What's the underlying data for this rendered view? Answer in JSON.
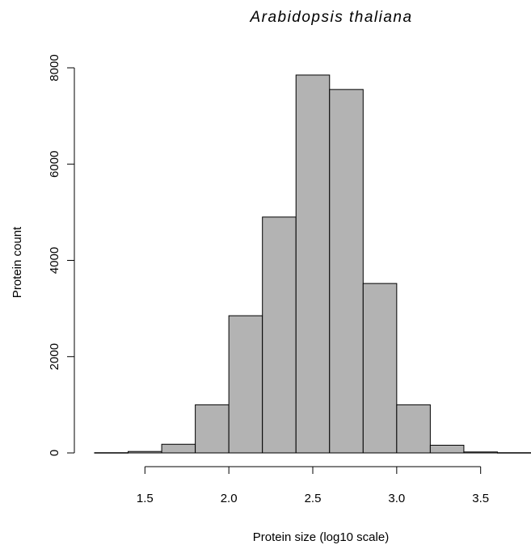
{
  "chart_data": {
    "type": "bar",
    "title": "Arabidopsis thaliana",
    "xlabel": "Protein size (log10 scale)",
    "ylabel": "Protein count",
    "xlim": [
      1.2,
      3.8
    ],
    "ylim": [
      0,
      8000
    ],
    "x_ticks": [
      "1.5",
      "2.0",
      "2.5",
      "3.0",
      "3.5"
    ],
    "y_ticks": [
      "0",
      "2000",
      "4000",
      "6000",
      "8000"
    ],
    "bin_edges": [
      1.2,
      1.4,
      1.6,
      1.8,
      2.0,
      2.2,
      2.4,
      2.6,
      2.8,
      3.0,
      3.2,
      3.4,
      3.6,
      3.8
    ],
    "values": [
      5,
      30,
      180,
      1000,
      2850,
      4900,
      7850,
      7550,
      3520,
      1000,
      160,
      20,
      5
    ],
    "grid": false,
    "bar_color": "#b3b3b3"
  }
}
